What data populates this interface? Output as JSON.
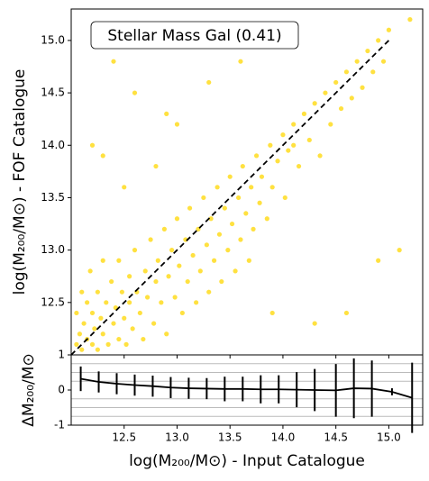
{
  "chart_data": [
    {
      "type": "scatter",
      "annotation": "Stellar Mass Gal (0.41)",
      "ylabel": "log(M₂₀₀/M⊙) - FOF Catalogue",
      "xlim": [
        12.0,
        15.32
      ],
      "ylim": [
        12.0,
        15.3
      ],
      "xticks": [
        12.5,
        13,
        13.5,
        14,
        14.5,
        15
      ],
      "yticks": [
        {
          "value": 12.5,
          "label": "12.5"
        },
        {
          "value": 13,
          "label": "13.0"
        },
        {
          "value": 13.5,
          "label": "13.5"
        },
        {
          "value": 14,
          "label": "14.0"
        },
        {
          "value": 14.5,
          "label": "14.5"
        },
        {
          "value": 15,
          "label": "15.0"
        }
      ],
      "reference_line": {
        "color": "#000000",
        "x": [
          12,
          15
        ],
        "y": [
          12,
          15
        ]
      },
      "series": [
        {
          "color": "#ffd700",
          "x": [
            12.05,
            12.05,
            12.08,
            12.1,
            12.1,
            12.12,
            12.15,
            12.15,
            12.18,
            12.2,
            12.2,
            12.22,
            12.25,
            12.25,
            12.28,
            12.3,
            12.3,
            12.33,
            12.35,
            12.38,
            12.4,
            12.42,
            12.45,
            12.45,
            12.48,
            12.5,
            12.52,
            12.55,
            12.55,
            12.58,
            12.6,
            12.62,
            12.65,
            12.68,
            12.7,
            12.72,
            12.75,
            12.78,
            12.8,
            12.82,
            12.85,
            12.88,
            12.9,
            12.92,
            12.95,
            12.98,
            13.0,
            13.02,
            13.05,
            13.08,
            13.1,
            13.12,
            13.15,
            13.18,
            13.2,
            13.22,
            13.25,
            13.28,
            13.3,
            13.32,
            13.35,
            13.38,
            13.4,
            13.42,
            13.45,
            13.48,
            13.5,
            13.52,
            13.55,
            13.58,
            13.6,
            13.62,
            13.65,
            13.68,
            13.7,
            13.72,
            13.75,
            13.78,
            13.8,
            13.85,
            13.88,
            13.9,
            13.95,
            14.0,
            14.02,
            14.05,
            14.1,
            14.15,
            14.2,
            14.25,
            14.3,
            14.35,
            14.4,
            14.45,
            14.5,
            14.55,
            14.6,
            14.65,
            14.7,
            14.75,
            14.8,
            14.85,
            14.9,
            14.95,
            15.0,
            15.2,
            12.4,
            12.6,
            12.9,
            13.6,
            14.1,
            13.3,
            12.2,
            12.5,
            14.6,
            14.9,
            15.1,
            14.3,
            13.9,
            12.3,
            13.0,
            12.8
          ],
          "y": [
            12.1,
            12.4,
            12.2,
            12.05,
            12.6,
            12.3,
            12.15,
            12.5,
            12.8,
            12.1,
            12.4,
            12.25,
            12.6,
            12.05,
            12.35,
            12.2,
            12.9,
            12.5,
            12.1,
            12.7,
            12.3,
            12.45,
            12.15,
            12.9,
            12.6,
            12.35,
            12.1,
            12.75,
            12.5,
            12.25,
            13.0,
            12.6,
            12.4,
            12.15,
            12.8,
            12.55,
            13.1,
            12.3,
            12.7,
            12.9,
            12.5,
            13.2,
            12.2,
            12.75,
            13.0,
            12.55,
            13.3,
            12.85,
            12.4,
            13.1,
            12.7,
            13.4,
            12.95,
            12.5,
            13.2,
            12.8,
            13.5,
            13.05,
            12.6,
            13.3,
            12.9,
            13.6,
            13.15,
            12.7,
            13.4,
            13.0,
            13.7,
            13.25,
            12.8,
            13.5,
            13.1,
            13.8,
            13.35,
            12.9,
            13.6,
            13.2,
            13.9,
            13.45,
            13.7,
            13.3,
            14.0,
            13.6,
            13.85,
            14.1,
            13.5,
            13.95,
            14.2,
            13.8,
            14.3,
            14.05,
            14.4,
            13.9,
            14.5,
            14.2,
            14.6,
            14.35,
            14.7,
            14.45,
            14.8,
            14.55,
            14.9,
            14.7,
            15.0,
            14.8,
            15.1,
            15.2,
            14.8,
            14.5,
            14.3,
            14.8,
            14.0,
            14.6,
            14.0,
            13.6,
            12.4,
            12.9,
            13.0,
            12.3,
            12.4,
            13.9,
            14.2,
            13.8
          ]
        }
      ]
    },
    {
      "type": "errorbar",
      "xlabel": "log(M₂₀₀/M⊙) - Input Catalogue",
      "ylabel": "ΔM₂₀₀/M⊙",
      "xlim": [
        12.0,
        15.32
      ],
      "ylim": [
        -1,
        1
      ],
      "xticks": [
        {
          "value": 12.5,
          "label": "12.5"
        },
        {
          "value": 13,
          "label": "13.0"
        },
        {
          "value": 13.5,
          "label": "13.5"
        },
        {
          "value": 14,
          "label": "14.0"
        },
        {
          "value": 14.5,
          "label": "14.5"
        },
        {
          "value": 15,
          "label": "15.0"
        }
      ],
      "yticks": [
        -1,
        0,
        1
      ],
      "hlines": [
        -0.75,
        -0.5,
        -0.25,
        0.25,
        0.5,
        0.75
      ],
      "series": [
        {
          "color": "#000000",
          "x": [
            12.09,
            12.26,
            12.43,
            12.6,
            12.77,
            12.94,
            13.11,
            13.28,
            13.45,
            13.62,
            13.79,
            13.96,
            14.13,
            14.3,
            14.5,
            14.67,
            14.84,
            15.03,
            15.22
          ],
          "values": [
            0.32,
            0.23,
            0.18,
            0.14,
            0.11,
            0.07,
            0.05,
            0.04,
            0.03,
            0.03,
            0.02,
            0.02,
            0.01,
            0.0,
            -0.01,
            0.05,
            0.04,
            -0.05,
            -0.22
          ],
          "errors": [
            0.35,
            0.3,
            0.3,
            0.3,
            0.3,
            0.3,
            0.3,
            0.3,
            0.35,
            0.35,
            0.4,
            0.4,
            0.5,
            0.6,
            0.75,
            0.85,
            0.8,
            0.1,
            1.0
          ]
        }
      ]
    }
  ]
}
